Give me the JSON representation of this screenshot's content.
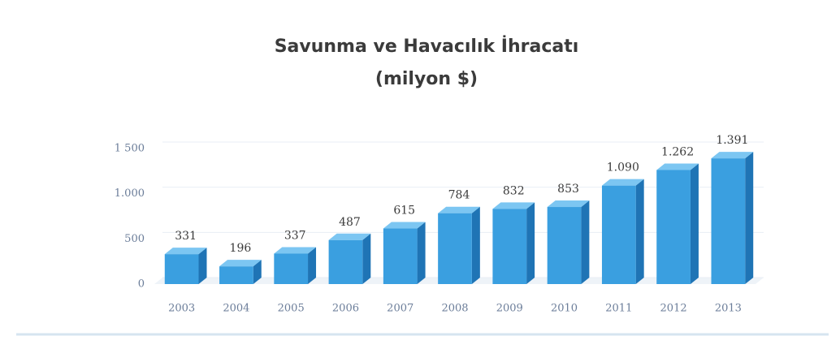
{
  "chart_data": {
    "type": "bar3d",
    "title": "Savunma ve Havacılık İhracatı",
    "subtitle": "(milyon $)",
    "categories": [
      "2003",
      "2004",
      "2005",
      "2006",
      "2007",
      "2008",
      "2009",
      "2010",
      "2011",
      "2012",
      "2013"
    ],
    "values": [
      331,
      196,
      337,
      487,
      615,
      784,
      832,
      853,
      1090,
      1262,
      1391
    ],
    "value_labels": [
      "331",
      "196",
      "337",
      "487",
      "615",
      "784",
      "832",
      "853",
      "1.090",
      "1.262",
      "1.391"
    ],
    "color": "#3a9fe0",
    "ylim": [
      0,
      1500
    ],
    "yticks": [
      0,
      500,
      {
        "value": 1000,
        "label": "1.000"
      },
      {
        "value": 1500,
        "label": "1 500"
      }
    ],
    "grid": true
  }
}
